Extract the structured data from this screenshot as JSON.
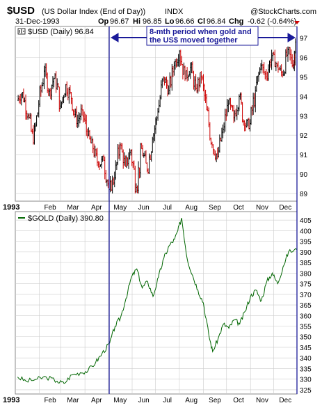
{
  "header": {
    "symbol": "$USD",
    "description": "(US Dollar Index (End of Day))",
    "exchange": "INDX",
    "date": "31-Dec-1993",
    "watermark": "@StockCharts.com",
    "quote": {
      "op_label": "Op",
      "op": "96.67",
      "hi_label": "Hi",
      "hi": "96.85",
      "lo_label": "Lo",
      "lo": "96.66",
      "cl_label": "Cl",
      "cl": "96.84",
      "chg_label": "Chg",
      "chg": "-0.62 (-0.64%)"
    }
  },
  "annotation": {
    "line1": "8-mth period when gold and",
    "line2": "the US$ moved together"
  },
  "colors": {
    "up_bar": "#000000",
    "down_bar": "#cc0000",
    "gold_line": "#006600",
    "guide_line": "#1a1a99",
    "grid": "#cccccc",
    "annotation_text": "#1a1a99"
  },
  "chart_data": [
    {
      "type": "candlestick",
      "legend": "$USD (Daily) 96.84",
      "ylim": [
        88.6,
        97.6
      ],
      "yticks": [
        89,
        90,
        91,
        92,
        93,
        94,
        95,
        96,
        97
      ],
      "x_range": [
        "1993-01-01",
        "1993-12-31"
      ],
      "bars": [
        {
          "date": "1993-01-04",
          "o": 93.8,
          "h": 94.5,
          "l": 93.4,
          "c": 94.2
        },
        {
          "date": "1993-01-11",
          "o": 94.2,
          "h": 94.4,
          "l": 92.8,
          "c": 93.0
        },
        {
          "date": "1993-01-18",
          "o": 93.0,
          "h": 93.3,
          "l": 91.0,
          "c": 91.6
        },
        {
          "date": "1993-01-25",
          "o": 91.6,
          "h": 93.8,
          "l": 91.4,
          "c": 93.6
        },
        {
          "date": "1993-02-01",
          "o": 93.6,
          "h": 95.6,
          "l": 93.4,
          "c": 95.3
        },
        {
          "date": "1993-02-08",
          "o": 95.3,
          "h": 95.7,
          "l": 94.0,
          "c": 94.3
        },
        {
          "date": "1993-02-15",
          "o": 94.3,
          "h": 95.4,
          "l": 93.8,
          "c": 95.1
        },
        {
          "date": "1993-02-22",
          "o": 95.1,
          "h": 95.3,
          "l": 93.2,
          "c": 93.5
        },
        {
          "date": "1993-03-01",
          "o": 93.5,
          "h": 94.8,
          "l": 93.3,
          "c": 94.6
        },
        {
          "date": "1993-03-08",
          "o": 94.6,
          "h": 95.1,
          "l": 93.6,
          "c": 93.9
        },
        {
          "date": "1993-03-15",
          "o": 93.9,
          "h": 94.0,
          "l": 92.4,
          "c": 92.6
        },
        {
          "date": "1993-03-22",
          "o": 92.6,
          "h": 93.6,
          "l": 92.3,
          "c": 93.3
        },
        {
          "date": "1993-03-29",
          "o": 93.3,
          "h": 93.5,
          "l": 91.7,
          "c": 92.0
        },
        {
          "date": "1993-04-05",
          "o": 92.0,
          "h": 92.4,
          "l": 91.0,
          "c": 91.3
        },
        {
          "date": "1993-04-12",
          "o": 91.3,
          "h": 91.6,
          "l": 90.3,
          "c": 90.5
        },
        {
          "date": "1993-04-19",
          "o": 90.5,
          "h": 91.0,
          "l": 89.8,
          "c": 90.7
        },
        {
          "date": "1993-04-26",
          "o": 90.7,
          "h": 90.9,
          "l": 88.9,
          "c": 89.2
        },
        {
          "date": "1993-05-03",
          "o": 89.2,
          "h": 90.3,
          "l": 89.0,
          "c": 89.8
        },
        {
          "date": "1993-05-10",
          "o": 89.8,
          "h": 91.8,
          "l": 89.6,
          "c": 91.5
        },
        {
          "date": "1993-05-17",
          "o": 91.5,
          "h": 91.6,
          "l": 90.2,
          "c": 90.4
        },
        {
          "date": "1993-05-24",
          "o": 90.4,
          "h": 91.5,
          "l": 90.1,
          "c": 91.2
        },
        {
          "date": "1993-05-31",
          "o": 91.2,
          "h": 91.4,
          "l": 89.0,
          "c": 89.3
        },
        {
          "date": "1993-06-07",
          "o": 89.3,
          "h": 91.6,
          "l": 89.0,
          "c": 91.3
        },
        {
          "date": "1993-06-14",
          "o": 91.3,
          "h": 91.5,
          "l": 90.0,
          "c": 90.2
        },
        {
          "date": "1993-06-21",
          "o": 90.2,
          "h": 92.0,
          "l": 90.0,
          "c": 91.8
        },
        {
          "date": "1993-06-28",
          "o": 91.8,
          "h": 93.4,
          "l": 91.6,
          "c": 93.2
        },
        {
          "date": "1993-07-05",
          "o": 93.2,
          "h": 95.2,
          "l": 93.0,
          "c": 95.0
        },
        {
          "date": "1993-07-12",
          "o": 95.0,
          "h": 95.3,
          "l": 94.0,
          "c": 94.3
        },
        {
          "date": "1993-07-19",
          "o": 94.3,
          "h": 95.8,
          "l": 94.1,
          "c": 95.6
        },
        {
          "date": "1993-07-26",
          "o": 95.6,
          "h": 96.6,
          "l": 95.3,
          "c": 96.3
        },
        {
          "date": "1993-08-02",
          "o": 96.3,
          "h": 96.4,
          "l": 94.6,
          "c": 94.9
        },
        {
          "date": "1993-08-09",
          "o": 94.9,
          "h": 95.8,
          "l": 94.6,
          "c": 95.5
        },
        {
          "date": "1993-08-16",
          "o": 95.5,
          "h": 95.8,
          "l": 94.1,
          "c": 94.4
        },
        {
          "date": "1993-08-23",
          "o": 94.4,
          "h": 95.3,
          "l": 93.8,
          "c": 95.0
        },
        {
          "date": "1993-08-30",
          "o": 95.0,
          "h": 95.2,
          "l": 93.0,
          "c": 93.3
        },
        {
          "date": "1993-09-06",
          "o": 93.3,
          "h": 93.5,
          "l": 91.2,
          "c": 91.5
        },
        {
          "date": "1993-09-13",
          "o": 91.5,
          "h": 92.0,
          "l": 90.4,
          "c": 90.9
        },
        {
          "date": "1993-09-20",
          "o": 90.9,
          "h": 92.6,
          "l": 90.7,
          "c": 92.3
        },
        {
          "date": "1993-09-27",
          "o": 92.3,
          "h": 93.9,
          "l": 92.1,
          "c": 93.6
        },
        {
          "date": "1993-10-04",
          "o": 93.6,
          "h": 94.1,
          "l": 92.6,
          "c": 92.9
        },
        {
          "date": "1993-10-11",
          "o": 92.9,
          "h": 94.3,
          "l": 92.7,
          "c": 94.0
        },
        {
          "date": "1993-10-18",
          "o": 94.0,
          "h": 94.2,
          "l": 92.2,
          "c": 92.5
        },
        {
          "date": "1993-10-25",
          "o": 92.5,
          "h": 92.9,
          "l": 91.8,
          "c": 92.6
        },
        {
          "date": "1993-11-01",
          "o": 92.6,
          "h": 94.6,
          "l": 92.4,
          "c": 94.3
        },
        {
          "date": "1993-11-08",
          "o": 94.3,
          "h": 95.9,
          "l": 94.1,
          "c": 95.6
        },
        {
          "date": "1993-11-15",
          "o": 95.6,
          "h": 96.0,
          "l": 94.7,
          "c": 95.0
        },
        {
          "date": "1993-11-22",
          "o": 95.0,
          "h": 96.4,
          "l": 94.8,
          "c": 96.1
        },
        {
          "date": "1993-11-29",
          "o": 96.1,
          "h": 96.4,
          "l": 95.3,
          "c": 95.6
        },
        {
          "date": "1993-12-06",
          "o": 95.6,
          "h": 95.8,
          "l": 94.9,
          "c": 95.1
        },
        {
          "date": "1993-12-13",
          "o": 95.1,
          "h": 96.7,
          "l": 95.0,
          "c": 96.4
        },
        {
          "date": "1993-12-20",
          "o": 96.4,
          "h": 96.6,
          "l": 95.2,
          "c": 95.5
        },
        {
          "date": "1993-12-27",
          "o": 95.5,
          "h": 97.4,
          "l": 95.3,
          "c": 96.8
        }
      ]
    },
    {
      "type": "line",
      "legend": "$GOLD (Daily) 390.80",
      "ylim": [
        323,
        409
      ],
      "yticks": [
        325,
        330,
        335,
        340,
        345,
        350,
        355,
        360,
        365,
        370,
        375,
        380,
        385,
        390,
        395,
        400,
        405
      ],
      "x_range": [
        "1993-01-01",
        "1993-12-31"
      ],
      "series": [
        {
          "x": [
            "1993-01-04",
            "1993-01-15",
            "1993-01-29",
            "1993-02-10",
            "1993-02-24",
            "1993-03-05",
            "1993-03-15",
            "1993-03-26",
            "1993-04-05",
            "1993-04-15",
            "1993-04-23",
            "1993-05-03",
            "1993-05-10",
            "1993-05-17",
            "1993-05-24",
            "1993-05-31",
            "1993-06-07",
            "1993-06-14",
            "1993-06-21",
            "1993-06-28",
            "1993-07-05",
            "1993-07-12",
            "1993-07-19",
            "1993-07-26",
            "1993-07-30",
            "1993-08-04",
            "1993-08-11",
            "1993-08-18",
            "1993-08-25",
            "1993-09-01",
            "1993-09-08",
            "1993-09-13",
            "1993-09-20",
            "1993-09-27",
            "1993-10-04",
            "1993-10-11",
            "1993-10-18",
            "1993-10-25",
            "1993-11-01",
            "1993-11-08",
            "1993-11-15",
            "1993-11-22",
            "1993-11-29",
            "1993-12-06",
            "1993-12-13",
            "1993-12-20",
            "1993-12-31"
          ],
          "values": [
            331,
            329,
            330,
            331,
            329,
            328,
            332,
            333,
            334,
            338,
            342,
            347,
            355,
            359,
            368,
            378,
            382,
            373,
            376,
            369,
            378,
            387,
            393,
            396,
            400,
            406,
            387,
            379,
            372,
            366,
            351,
            343,
            349,
            356,
            354,
            358,
            356,
            362,
            369,
            372,
            367,
            376,
            380,
            375,
            383,
            390,
            391
          ]
        }
      ]
    }
  ],
  "axis": {
    "year_label": "1993",
    "months": [
      "Feb",
      "Mar",
      "Apr",
      "May",
      "Jun",
      "Jul",
      "Aug",
      "Sep",
      "Oct",
      "Nov",
      "Dec"
    ]
  }
}
